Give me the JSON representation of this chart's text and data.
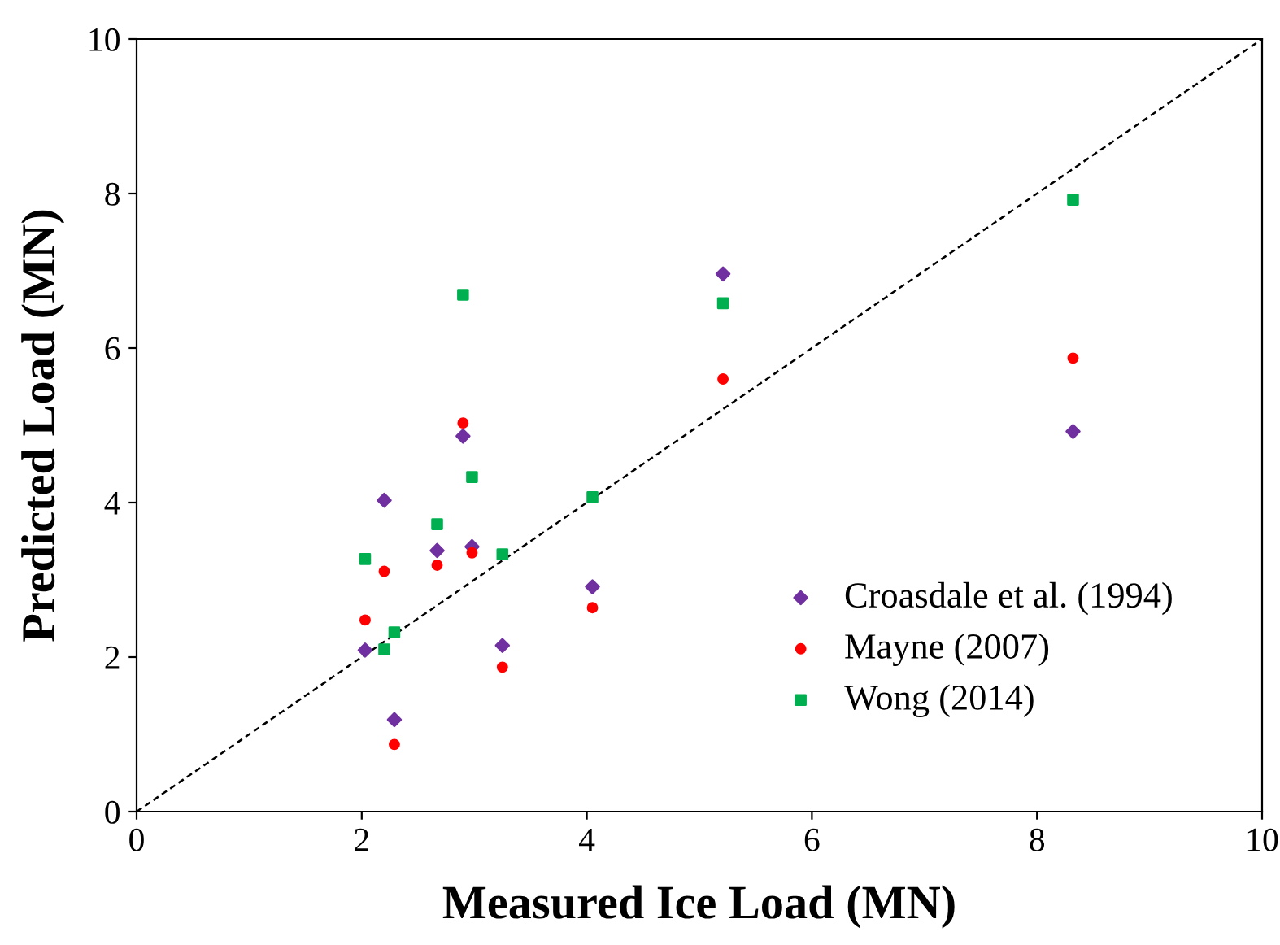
{
  "chart_data": {
    "type": "scatter",
    "xlabel": "Measured Ice Load (MN)",
    "ylabel": "Predicted Load (MN)",
    "xlim": [
      0,
      10
    ],
    "ylim": [
      0,
      10
    ],
    "xticks": [
      0,
      2,
      4,
      6,
      8,
      10
    ],
    "yticks": [
      0,
      2,
      4,
      6,
      8,
      10
    ],
    "grid": false,
    "legend": "bottom right",
    "x": [
      2.03,
      2.2,
      2.29,
      2.67,
      2.9,
      2.98,
      3.25,
      4.05,
      5.21,
      8.32
    ],
    "series": [
      {
        "name": "Croasdale et al. (1994)",
        "color": "#7030a0",
        "marker": "diamond",
        "values": [
          2.09,
          4.03,
          1.19,
          3.38,
          4.86,
          3.43,
          2.15,
          2.91,
          6.96,
          4.92
        ]
      },
      {
        "name": "Mayne (2007)",
        "color": "#ff0000",
        "marker": "circle",
        "values": [
          2.48,
          3.11,
          0.87,
          3.19,
          5.03,
          3.35,
          1.87,
          2.64,
          5.6,
          5.87
        ]
      },
      {
        "name": "Wong (2014)",
        "color": "#00b050",
        "marker": "square",
        "values": [
          3.27,
          2.1,
          2.32,
          3.72,
          6.69,
          4.33,
          3.33,
          4.07,
          6.58,
          7.92
        ]
      },
      {
        "type": "line",
        "color": "#000000",
        "line_style": "dashed",
        "marker": "none",
        "x": [
          0,
          10
        ],
        "values": [
          0,
          10
        ]
      }
    ]
  }
}
